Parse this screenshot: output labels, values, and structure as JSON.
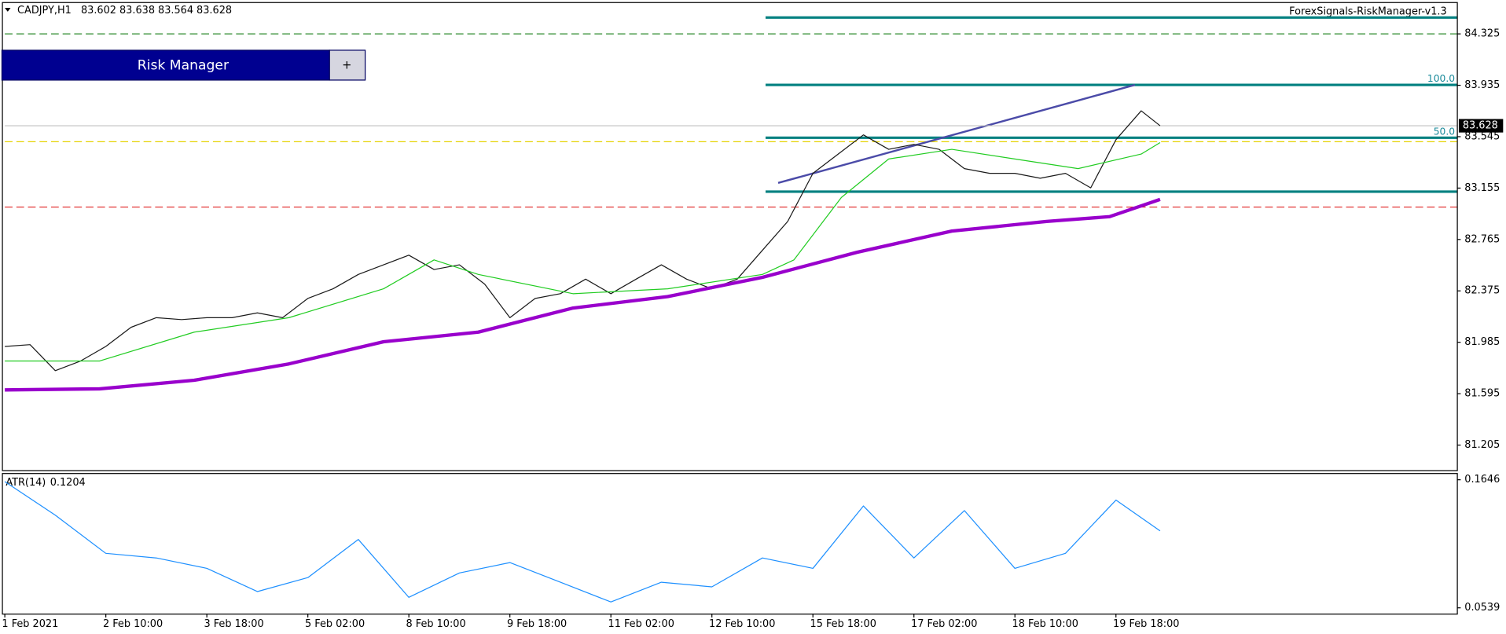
{
  "ui": {
    "risk_button": "Risk Manager",
    "plus": "+",
    "indicator": "ForexSignals-RiskManager-v1.3"
  },
  "chart_data": [
    {
      "type": "line",
      "title": "CADJPY,H1",
      "ohlc": [
        83.602,
        83.638,
        83.564,
        83.628
      ],
      "xlim": [
        0,
        460
      ],
      "ylim": [
        81.015,
        84.559
      ],
      "yticks": [
        84.325,
        83.935,
        83.545,
        83.155,
        82.765,
        82.375,
        81.985,
        81.595,
        81.205
      ],
      "last_price": 83.628,
      "series": [
        {
          "color": "#1a1a1a",
          "x": [
            0,
            8,
            16,
            24,
            32,
            40,
            48,
            56,
            64,
            72,
            80,
            88,
            96,
            104,
            112,
            120,
            128,
            136,
            144,
            152,
            160,
            168,
            176,
            184,
            192,
            200,
            208,
            216,
            224,
            232,
            240,
            248,
            256,
            264,
            272,
            280,
            288,
            296,
            304,
            312,
            320,
            328,
            336,
            344,
            352,
            360,
            366
          ],
          "values": [
            81.953,
            81.967,
            81.77,
            81.843,
            81.953,
            82.099,
            82.172,
            82.157,
            82.172,
            82.172,
            82.208,
            82.172,
            82.318,
            82.391,
            82.5,
            82.573,
            82.646,
            82.537,
            82.573,
            82.427,
            82.172,
            82.318,
            82.354,
            82.464,
            82.354,
            82.464,
            82.573,
            82.464,
            82.391,
            82.464,
            82.683,
            82.902,
            83.267,
            83.413,
            83.559,
            83.449,
            83.486,
            83.449,
            83.303,
            83.267,
            83.267,
            83.23,
            83.267,
            83.157,
            83.522,
            83.741,
            83.628
          ]
        },
        {
          "color": "#22cc22",
          "x": [
            0,
            30,
            60,
            90,
            120,
            136,
            150,
            180,
            210,
            240,
            250,
            265,
            280,
            300,
            320,
            340,
            360,
            366
          ],
          "values": [
            81.843,
            81.843,
            82.062,
            82.172,
            82.391,
            82.61,
            82.5,
            82.354,
            82.391,
            82.5,
            82.61,
            83.084,
            83.376,
            83.449,
            83.376,
            83.303,
            83.413,
            83.5
          ]
        },
        {
          "color": "#9900cc",
          "x": [
            0,
            30,
            60,
            90,
            120,
            150,
            180,
            210,
            240,
            270,
            300,
            330,
            350,
            366
          ],
          "values": [
            81.624,
            81.632,
            81.697,
            81.821,
            81.989,
            82.062,
            82.245,
            82.332,
            82.478,
            82.668,
            82.829,
            82.902,
            82.938,
            83.069
          ]
        }
      ],
      "levels": [
        {
          "value": 84.325,
          "color": "#2e8b2e"
        },
        {
          "value": 83.507,
          "color": "#e6d200"
        },
        {
          "value": 83.011,
          "color": "#e02020"
        }
      ],
      "zone_x_start": 241,
      "zones": [
        84.449,
        83.938,
        83.537,
        83.128
      ],
      "fib_levels": [
        {
          "value": 83.938,
          "label": "100.0"
        },
        {
          "value": 83.537,
          "label": "50.0"
        }
      ],
      "trendline": {
        "x": [
          245,
          358
        ],
        "values": [
          83.194,
          83.938
        ]
      }
    },
    {
      "type": "line",
      "title": "ATR(14)",
      "current": 0.1204,
      "xlim": [
        0,
        460
      ],
      "ylim": [
        0.0489,
        0.1696
      ],
      "yticks": [
        0.1646,
        0.0539
      ],
      "xticks": [
        {
          "value": 0,
          "label": "1 Feb 2021"
        },
        {
          "value": 32,
          "label": "2 Feb 10:00"
        },
        {
          "value": 64,
          "label": "3 Feb 18:00"
        },
        {
          "value": 96,
          "label": "5 Feb 02:00"
        },
        {
          "value": 128,
          "label": "8 Feb 10:00"
        },
        {
          "value": 160,
          "label": "9 Feb 18:00"
        },
        {
          "value": 192,
          "label": "11 Feb 02:00"
        },
        {
          "value": 224,
          "label": "12 Feb 10:00"
        },
        {
          "value": 256,
          "label": "15 Feb 18:00"
        },
        {
          "value": 288,
          "label": "17 Feb 02:00"
        },
        {
          "value": 320,
          "label": "18 Feb 10:00"
        },
        {
          "value": 352,
          "label": "19 Feb 18:00"
        }
      ],
      "series": [
        {
          "color": "#1e90ff",
          "x": [
            0,
            16,
            32,
            48,
            64,
            80,
            96,
            112,
            128,
            144,
            160,
            176,
            192,
            208,
            224,
            240,
            256,
            272,
            288,
            304,
            320,
            336,
            352,
            366
          ],
          "values": [
            0.163,
            0.134,
            0.101,
            0.097,
            0.088,
            0.068,
            0.08,
            0.113,
            0.063,
            0.084,
            0.093,
            0.076,
            0.059,
            0.076,
            0.072,
            0.097,
            0.088,
            0.142,
            0.097,
            0.138,
            0.088,
            0.101,
            0.147,
            0.1204
          ]
        }
      ]
    }
  ]
}
